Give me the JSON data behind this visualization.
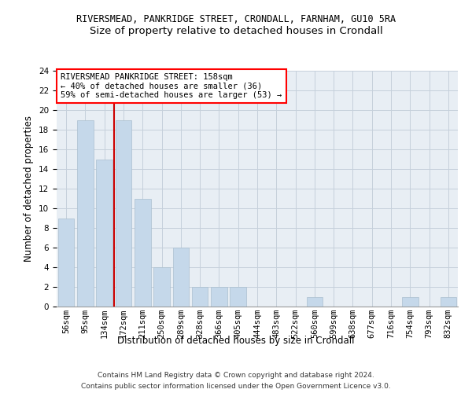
{
  "title": "RIVERSMEAD, PANKRIDGE STREET, CRONDALL, FARNHAM, GU10 5RA",
  "subtitle": "Size of property relative to detached houses in Crondall",
  "xlabel": "Distribution of detached houses by size in Crondall",
  "ylabel": "Number of detached properties",
  "categories": [
    "56sqm",
    "95sqm",
    "134sqm",
    "172sqm",
    "211sqm",
    "250sqm",
    "289sqm",
    "328sqm",
    "366sqm",
    "405sqm",
    "444sqm",
    "483sqm",
    "522sqm",
    "560sqm",
    "599sqm",
    "638sqm",
    "677sqm",
    "716sqm",
    "754sqm",
    "793sqm",
    "832sqm"
  ],
  "values": [
    9,
    19,
    15,
    19,
    11,
    4,
    6,
    2,
    2,
    2,
    0,
    0,
    0,
    1,
    0,
    0,
    0,
    0,
    1,
    0,
    1
  ],
  "bar_color": "#c5d8ea",
  "bar_edge_color": "#aabfcf",
  "ylim": [
    0,
    24
  ],
  "yticks": [
    0,
    2,
    4,
    6,
    8,
    10,
    12,
    14,
    16,
    18,
    20,
    22,
    24
  ],
  "red_line_color": "#cc0000",
  "annotation_box_text": "RIVERSMEAD PANKRIDGE STREET: 158sqm\n← 40% of detached houses are smaller (36)\n59% of semi-detached houses are larger (53) →",
  "footer_line1": "Contains HM Land Registry data © Crown copyright and database right 2024.",
  "footer_line2": "Contains public sector information licensed under the Open Government Licence v3.0.",
  "background_color": "#e8eef4",
  "grid_color": "#c5d0db",
  "title_fontsize": 8.5,
  "subtitle_fontsize": 9.5,
  "axis_label_fontsize": 8.5,
  "tick_fontsize": 7.5,
  "annotation_fontsize": 7.5,
  "footer_fontsize": 6.5
}
